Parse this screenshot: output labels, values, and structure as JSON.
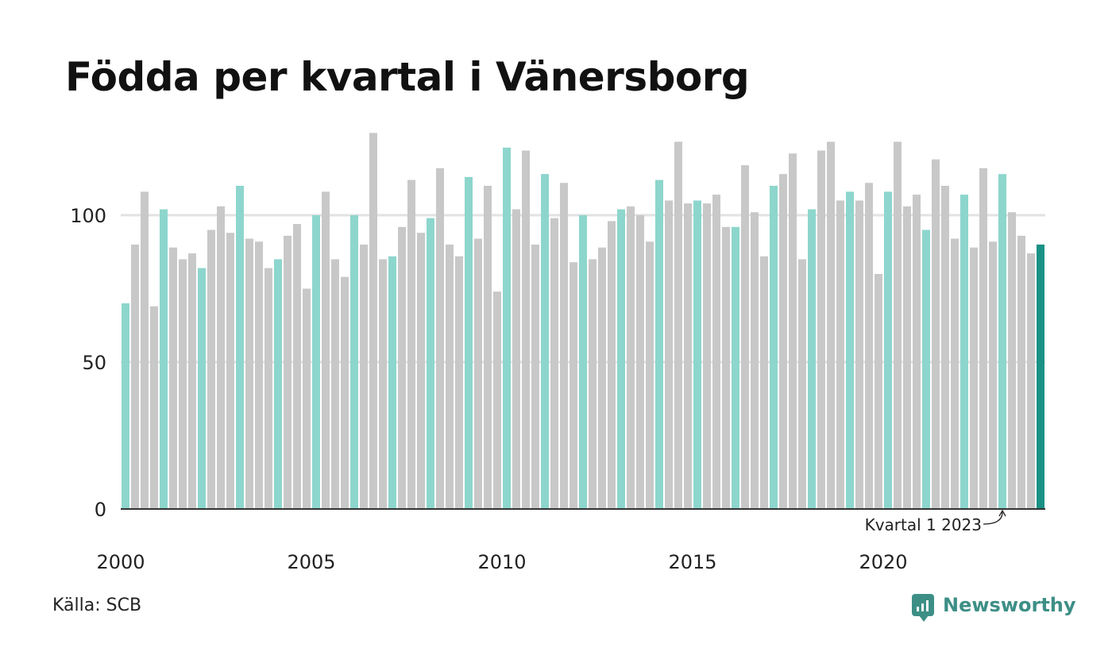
{
  "page": {
    "title": "Födda per kvartal i Vänersborg",
    "source": "Källa: SCB",
    "brand": "Newsworthy"
  },
  "chart_data": {
    "type": "bar",
    "title": "Födda per kvartal i Vänersborg",
    "xlabel": "",
    "ylabel": "",
    "ylim": [
      0,
      130
    ],
    "yticks": [
      0,
      50,
      100
    ],
    "xtick_labels": [
      "2000",
      "2005",
      "2010",
      "2015",
      "2020"
    ],
    "grid": true,
    "highlight_quarter": 1,
    "annotation": "Kvartal 1 2023",
    "colors": {
      "q1": "#8dd6cd",
      "other": "#c8c8c8",
      "latest": "#1a9185",
      "grid": "#e2e2e2",
      "axis": "#333333"
    },
    "categories": [
      "2000 Q1",
      "2000 Q2",
      "2000 Q3",
      "2000 Q4",
      "2001 Q1",
      "2001 Q2",
      "2001 Q3",
      "2001 Q4",
      "2002 Q1",
      "2002 Q2",
      "2002 Q3",
      "2002 Q4",
      "2003 Q1",
      "2003 Q2",
      "2003 Q3",
      "2003 Q4",
      "2004 Q1",
      "2004 Q2",
      "2004 Q3",
      "2004 Q4",
      "2005 Q1",
      "2005 Q2",
      "2005 Q3",
      "2005 Q4",
      "2006 Q1",
      "2006 Q2",
      "2006 Q3",
      "2006 Q4",
      "2007 Q1",
      "2007 Q2",
      "2007 Q3",
      "2007 Q4",
      "2008 Q1",
      "2008 Q2",
      "2008 Q3",
      "2008 Q4",
      "2009 Q1",
      "2009 Q2",
      "2009 Q3",
      "2009 Q4",
      "2010 Q1",
      "2010 Q2",
      "2010 Q3",
      "2010 Q4",
      "2011 Q1",
      "2011 Q2",
      "2011 Q3",
      "2011 Q4",
      "2012 Q1",
      "2012 Q2",
      "2012 Q3",
      "2012 Q4",
      "2013 Q1",
      "2013 Q2",
      "2013 Q3",
      "2013 Q4",
      "2014 Q1",
      "2014 Q2",
      "2014 Q3",
      "2014 Q4",
      "2015 Q1",
      "2015 Q2",
      "2015 Q3",
      "2015 Q4",
      "2016 Q1",
      "2016 Q2",
      "2016 Q3",
      "2016 Q4",
      "2017 Q1",
      "2017 Q2",
      "2017 Q3",
      "2017 Q4",
      "2018 Q1",
      "2018 Q2",
      "2018 Q3",
      "2018 Q4",
      "2019 Q1",
      "2019 Q2",
      "2019 Q3",
      "2019 Q4",
      "2020 Q1",
      "2020 Q2",
      "2020 Q3",
      "2020 Q4",
      "2021 Q1",
      "2021 Q2",
      "2021 Q3",
      "2021 Q4",
      "2022 Q1",
      "2022 Q2",
      "2022 Q3",
      "2022 Q4",
      "2023 Q1",
      "2023 Q2",
      "2023 Q3",
      "2023 Q4",
      "2024 Q1"
    ],
    "values": [
      70,
      90,
      108,
      69,
      102,
      89,
      85,
      87,
      82,
      95,
      103,
      94,
      110,
      92,
      91,
      82,
      85,
      93,
      97,
      75,
      100,
      108,
      85,
      79,
      100,
      90,
      128,
      85,
      86,
      96,
      112,
      94,
      99,
      116,
      90,
      86,
      113,
      92,
      110,
      74,
      123,
      102,
      122,
      90,
      114,
      99,
      111,
      84,
      100,
      85,
      89,
      98,
      102,
      103,
      100,
      91,
      112,
      105,
      125,
      104,
      105,
      104,
      107,
      96,
      96,
      117,
      101,
      86,
      110,
      114,
      121,
      85,
      102,
      122,
      125,
      105,
      108,
      105,
      111,
      80,
      108,
      125,
      103,
      107,
      95,
      119,
      110,
      92,
      107,
      89,
      116,
      91,
      114,
      101,
      93,
      87,
      90
    ]
  }
}
